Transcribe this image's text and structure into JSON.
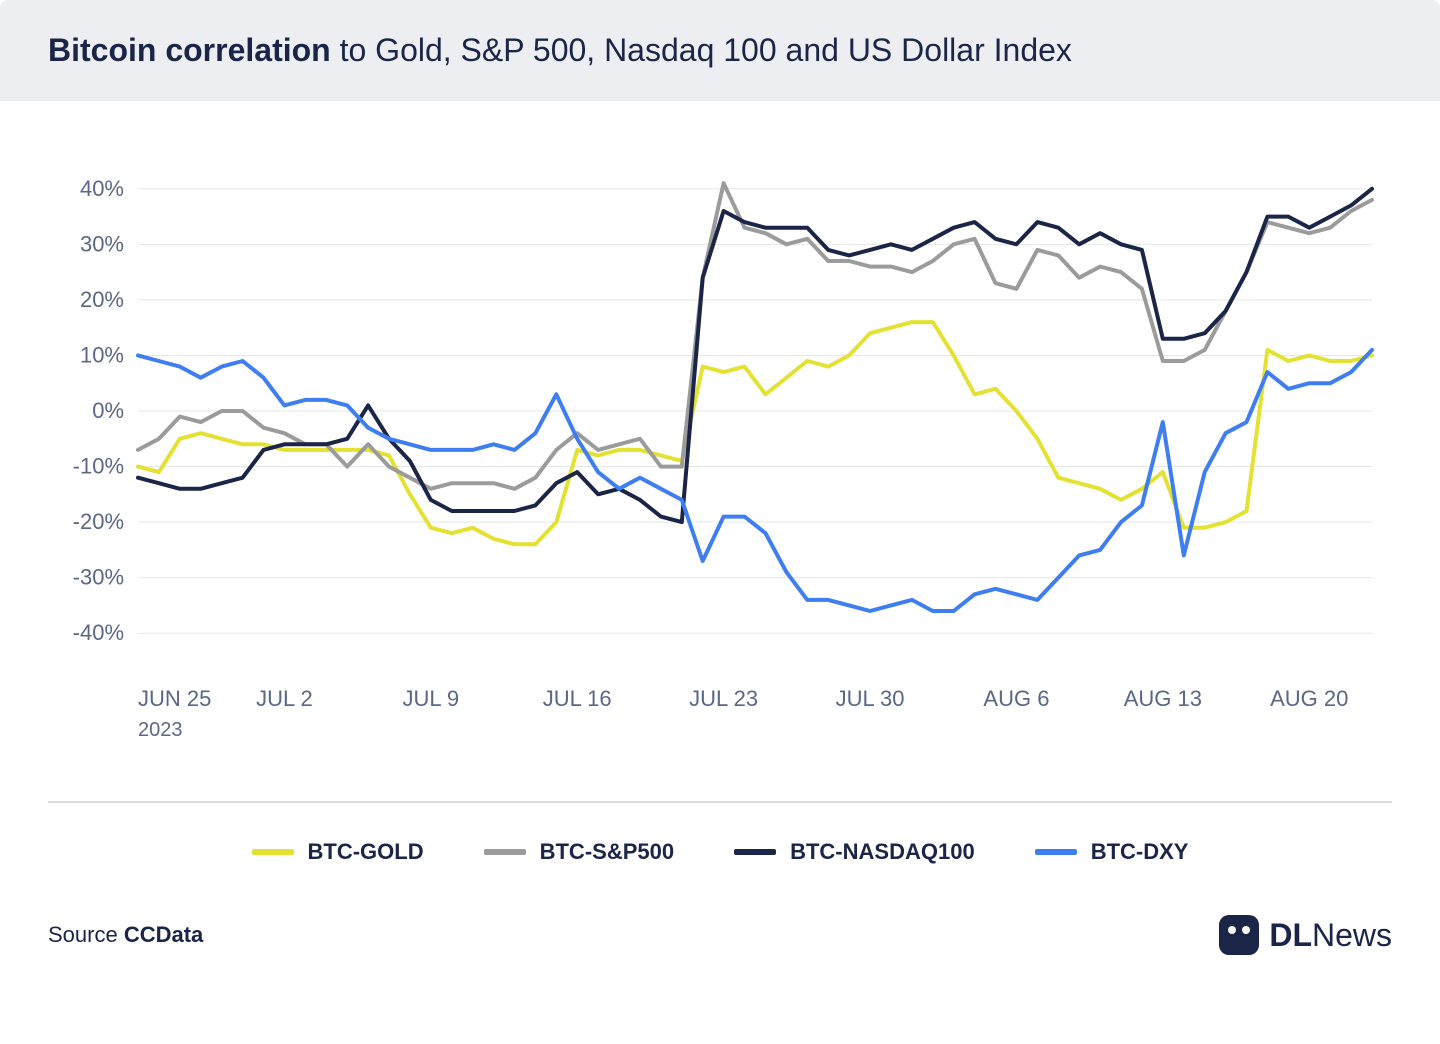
{
  "title_bold": "Bitcoin correlation",
  "title_rest": " to Gold, S&P 500, Nasdaq 100 and US Dollar Index",
  "source_label": "Source ",
  "source_name": "CCData",
  "brand_bold": "DL",
  "brand_light": "News",
  "chart": {
    "type": "line",
    "background_color": "#ffffff",
    "grid_color": "#e5e7eb",
    "text_color": "#5a6785",
    "ylim": [
      -45,
      45
    ],
    "y_ticks": [
      -40,
      -30,
      -20,
      -10,
      0,
      10,
      20,
      30,
      40
    ],
    "y_tick_labels": [
      "-40%",
      "-30%",
      "-20%",
      "-10%",
      "0%",
      "10%",
      "20%",
      "30%",
      "40%"
    ],
    "x_ticks": [
      0,
      7,
      14,
      21,
      28,
      35,
      42,
      49,
      56
    ],
    "x_tick_labels": [
      "JUN 25",
      "JUL 2",
      "JUL 9",
      "JUL 16",
      "JUL 23",
      "JUL 30",
      "AUG 6",
      "AUG 13",
      "AUG 20"
    ],
    "x_year": "2023",
    "x_domain": [
      0,
      59
    ],
    "label_fontsize": 22,
    "line_width": 4,
    "series": [
      {
        "name": "BTC-GOLD",
        "color": "#e3e233",
        "values": [
          -10,
          -11,
          -5,
          -4,
          -5,
          -6,
          -6,
          -7,
          -7,
          -7,
          -7,
          -7,
          -8,
          -15,
          -21,
          -22,
          -21,
          -23,
          -24,
          -24,
          -20,
          -7,
          -8,
          -7,
          -7,
          -8,
          -9,
          8,
          7,
          8,
          3,
          6,
          9,
          8,
          10,
          14,
          15,
          16,
          16,
          10,
          3,
          4,
          0,
          -5,
          -12,
          -13,
          -14,
          -16,
          -14,
          -11,
          -21,
          -21,
          -20,
          -18,
          11,
          9,
          10,
          9,
          9,
          10
        ]
      },
      {
        "name": "BTC-S&P500",
        "color": "#9b9b9b",
        "values": [
          -7,
          -5,
          -1,
          -2,
          0,
          0,
          -3,
          -4,
          -6,
          -6,
          -10,
          -6,
          -10,
          -12,
          -14,
          -13,
          -13,
          -13,
          -14,
          -12,
          -7,
          -4,
          -7,
          -6,
          -5,
          -10,
          -10,
          24,
          41,
          33,
          32,
          30,
          31,
          27,
          27,
          26,
          26,
          25,
          27,
          30,
          31,
          23,
          22,
          29,
          28,
          24,
          26,
          25,
          22,
          9,
          9,
          11,
          18,
          25,
          34,
          33,
          32,
          33,
          36,
          38
        ]
      },
      {
        "name": "BTC-NASDAQ100",
        "color": "#1a2547",
        "values": [
          -12,
          -13,
          -14,
          -14,
          -13,
          -12,
          -7,
          -6,
          -6,
          -6,
          -5,
          1,
          -5,
          -9,
          -16,
          -18,
          -18,
          -18,
          -18,
          -17,
          -13,
          -11,
          -15,
          -14,
          -16,
          -19,
          -20,
          24,
          36,
          34,
          33,
          33,
          33,
          29,
          28,
          29,
          30,
          29,
          31,
          33,
          34,
          31,
          30,
          34,
          33,
          30,
          32,
          30,
          29,
          13,
          13,
          14,
          18,
          25,
          35,
          35,
          33,
          35,
          37,
          40
        ]
      },
      {
        "name": "BTC-DXY",
        "color": "#3e7ef0",
        "values": [
          10,
          9,
          8,
          6,
          8,
          9,
          6,
          1,
          2,
          2,
          1,
          -3,
          -5,
          -6,
          -7,
          -7,
          -7,
          -6,
          -7,
          -4,
          3,
          -5,
          -11,
          -14,
          -12,
          -14,
          -16,
          -27,
          -19,
          -19,
          -22,
          -29,
          -34,
          -34,
          -35,
          -36,
          -35,
          -34,
          -36,
          -36,
          -33,
          -32,
          -33,
          -34,
          -30,
          -26,
          -25,
          -20,
          -17,
          -2,
          -26,
          -11,
          -4,
          -2,
          7,
          4,
          5,
          5,
          7,
          11
        ]
      }
    ]
  },
  "legend": [
    {
      "label": "BTC-GOLD",
      "color": "#e3e233"
    },
    {
      "label": "BTC-S&P500",
      "color": "#9b9b9b"
    },
    {
      "label": "BTC-NASDAQ100",
      "color": "#1a2547"
    },
    {
      "label": "BTC-DXY",
      "color": "#3e7ef0"
    }
  ]
}
